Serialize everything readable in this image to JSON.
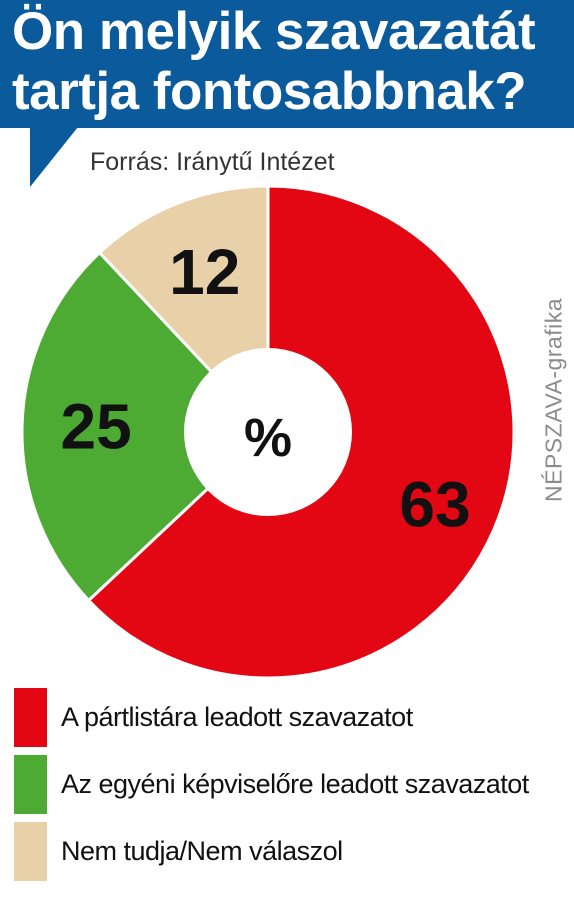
{
  "chart_data": {
    "type": "pie",
    "title": "Ön melyik szavazatát tartja fontosabbnak?",
    "title_lines": [
      "Ön melyik szavazatát",
      "tartja fontosabbnak?"
    ],
    "source": "Forrás: Iránytű Intézet",
    "credit": "NÉPSZAVA-grafika",
    "center_label": "%",
    "donut": true,
    "legend_position": "bottom",
    "slices": [
      {
        "label": "A pártlistára leadott szavazatot",
        "value": 63,
        "display": "63",
        "color": "#e30613"
      },
      {
        "label": "Az egyéni képviselőre leadott szavazatot",
        "value": 25,
        "display": "25",
        "color": "#4daa32"
      },
      {
        "label": "Nem tudja/Nem válaszol",
        "value": 12,
        "display": "12",
        "color": "#e8d0a8"
      }
    ]
  }
}
